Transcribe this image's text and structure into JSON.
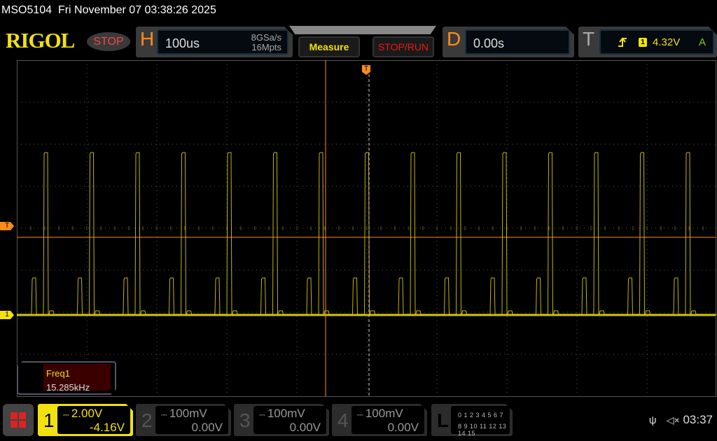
{
  "title_bar": {
    "model": "MSO5104",
    "datetime": "Fri November 07 03:38:26 2025"
  },
  "logo": "RIGOL",
  "run_state": "STOP",
  "horizontal": {
    "label": "H",
    "timebase": "100us",
    "sample_rate": "8GSa/s",
    "memory_depth": "16Mpts"
  },
  "buttons": {
    "measure": "Measure",
    "stop_run": "STOP/RUN"
  },
  "delay": {
    "label": "D",
    "value": "0.00s"
  },
  "trigger": {
    "label": "T",
    "slope_icon": "rising-edge-icon",
    "source": "1",
    "level": "4.32V",
    "mode": "A"
  },
  "markers": {
    "trigger_top": "T",
    "trigger_level": "T",
    "channel1": "1"
  },
  "measurement": {
    "name": "Freq1",
    "value": "15.285kHz"
  },
  "channels": [
    {
      "num": "1",
      "scale": "2.00V",
      "offset": "-4.16V",
      "coupling_icon": "dc-coupling-icon",
      "color": "#f1e10f",
      "active": true
    },
    {
      "num": "2",
      "scale": "100mV",
      "offset": "0.00V",
      "coupling_icon": "dc-coupling-icon"
    },
    {
      "num": "3",
      "scale": "100mV",
      "offset": "0.00V",
      "coupling_icon": "dc-coupling-icon"
    },
    {
      "num": "4",
      "scale": "100mV",
      "offset": "0.00V",
      "coupling_icon": "dc-coupling-icon"
    }
  ],
  "logic": {
    "label": "L",
    "row1": "0 1 2 3  4 5 6 7",
    "row2": "8 9 10 11 12 13 14 15"
  },
  "status": {
    "time": "03:37",
    "usb_icon": "usb-icon",
    "sound_icon": "speaker-muted-icon"
  },
  "colors": {
    "trace": "#f1e10f",
    "trigger": "#ff8c1a",
    "grid": "#555555"
  }
}
